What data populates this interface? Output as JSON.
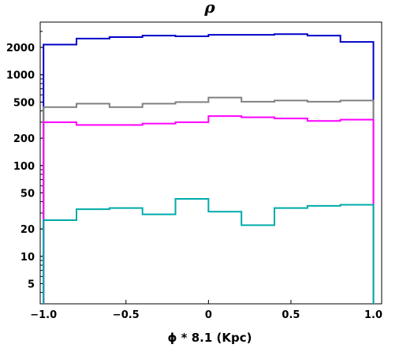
{
  "chart_data": {
    "type": "line",
    "title": "ρ",
    "xlabel": "ϕ * 8.1 (Kpc)",
    "ylabel": "",
    "xscale": "linear",
    "yscale": "log",
    "xlim": [
      -1.02,
      1.05
    ],
    "ylim": [
      3,
      3800
    ],
    "grid": false,
    "legend": "none",
    "xticks": [
      {
        "value": -1.0,
        "label": "−1.0"
      },
      {
        "value": -0.5,
        "label": "−0.5"
      },
      {
        "value": 0.0,
        "label": "0"
      },
      {
        "value": 0.5,
        "label": "0.5"
      },
      {
        "value": 1.0,
        "label": "1.0"
      }
    ],
    "yticks": [
      {
        "value": 5,
        "label": "5"
      },
      {
        "value": 10,
        "label": "10"
      },
      {
        "value": 20,
        "label": "20"
      },
      {
        "value": 50,
        "label": "50"
      },
      {
        "value": 100,
        "label": "100"
      },
      {
        "value": 200,
        "label": "200"
      },
      {
        "value": 500,
        "label": "500"
      },
      {
        "value": 1000,
        "label": "1000"
      },
      {
        "value": 2000,
        "label": "2000"
      }
    ],
    "bin_edges": [
      -1.0,
      -0.8,
      -0.6,
      -0.4,
      -0.2,
      0.0,
      0.2,
      0.4,
      0.6,
      0.8,
      1.0
    ],
    "series": [
      {
        "color": "#0000c8",
        "values": [
          2150,
          2500,
          2600,
          2700,
          2650,
          2750,
          2750,
          2800,
          2700,
          2300
        ]
      },
      {
        "color": "#808080",
        "values": [
          440,
          480,
          440,
          480,
          500,
          560,
          505,
          520,
          505,
          520
        ]
      },
      {
        "color": "#ff00ff",
        "values": [
          300,
          280,
          280,
          290,
          300,
          350,
          340,
          330,
          310,
          320
        ]
      },
      {
        "color": "#00aaaa",
        "values": [
          25,
          33,
          34,
          29,
          43,
          31,
          22,
          34,
          36,
          37
        ]
      }
    ]
  }
}
